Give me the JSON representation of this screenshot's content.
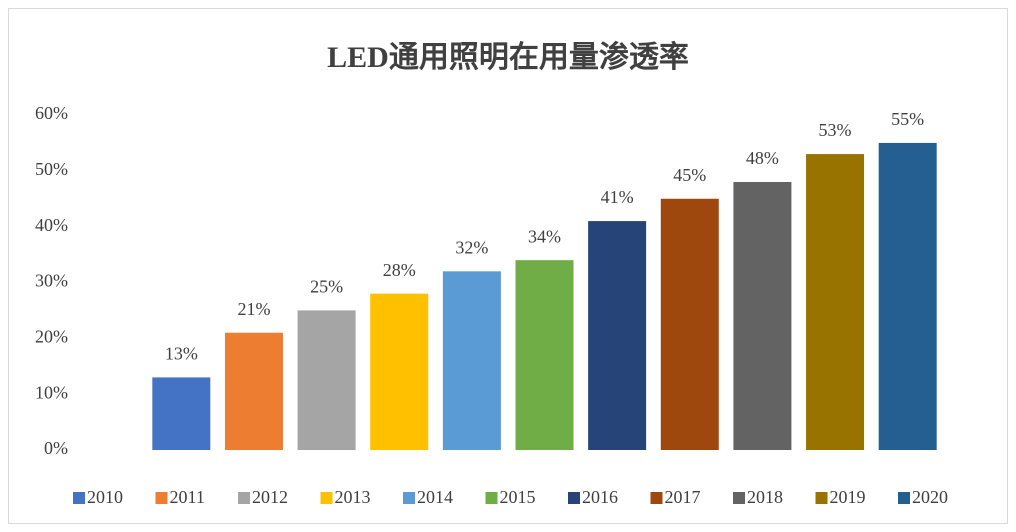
{
  "chart_data": {
    "type": "bar",
    "title": "LED通用照明在用量渗透率",
    "categories": [
      "2010",
      "2011",
      "2012",
      "2013",
      "2014",
      "2015",
      "2016",
      "2017",
      "2018",
      "2019",
      "2020"
    ],
    "values": [
      13,
      21,
      25,
      28,
      32,
      34,
      41,
      45,
      48,
      53,
      55
    ],
    "value_labels": [
      "13%",
      "21%",
      "25%",
      "28%",
      "32%",
      "34%",
      "41%",
      "45%",
      "48%",
      "53%",
      "55%"
    ],
    "colors": [
      "#4472c4",
      "#ed7d31",
      "#a5a5a5",
      "#ffc000",
      "#5b9bd5",
      "#70ad47",
      "#264478",
      "#9e480e",
      "#636363",
      "#997300",
      "#255e91"
    ],
    "ylim": [
      0,
      60
    ],
    "yticks": [
      {
        "value": 0,
        "label": "0%"
      },
      {
        "value": 10,
        "label": "10%"
      },
      {
        "value": 20,
        "label": "20%"
      },
      {
        "value": 30,
        "label": "30%"
      },
      {
        "value": 40,
        "label": "40%"
      },
      {
        "value": 50,
        "label": "50%"
      },
      {
        "value": 60,
        "label": "60%"
      }
    ],
    "legend": "bottom"
  }
}
